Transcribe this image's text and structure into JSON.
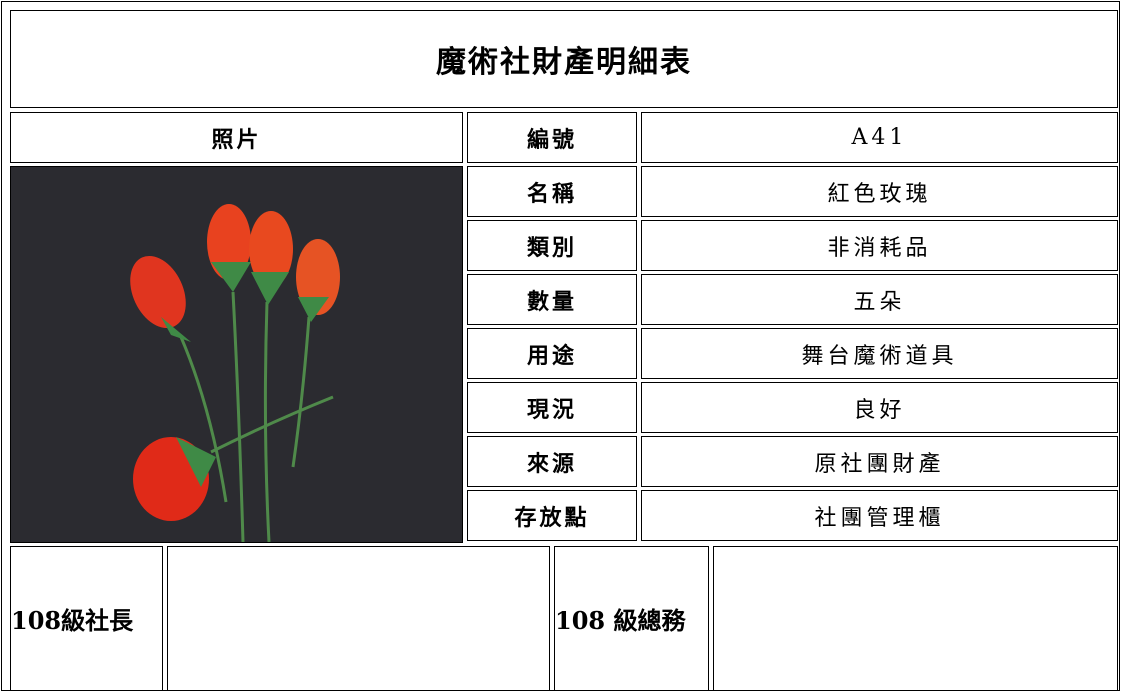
{
  "title": "魔術社財產明細表",
  "photo_header": "照片",
  "fields": [
    {
      "label": "編號",
      "value": "A41"
    },
    {
      "label": "名稱",
      "value": "紅色玫瑰"
    },
    {
      "label": "類別",
      "value": "非消耗品"
    },
    {
      "label": "數量",
      "value": "五朵"
    },
    {
      "label": "用途",
      "value": "舞台魔術道具"
    },
    {
      "label": "現況",
      "value": "良好"
    },
    {
      "label": "來源",
      "value": "原社團財產"
    },
    {
      "label": "存放點",
      "value": "社團管理櫃"
    }
  ],
  "signatures": [
    {
      "label": "108級社長"
    },
    {
      "label": "108 級總務"
    }
  ]
}
